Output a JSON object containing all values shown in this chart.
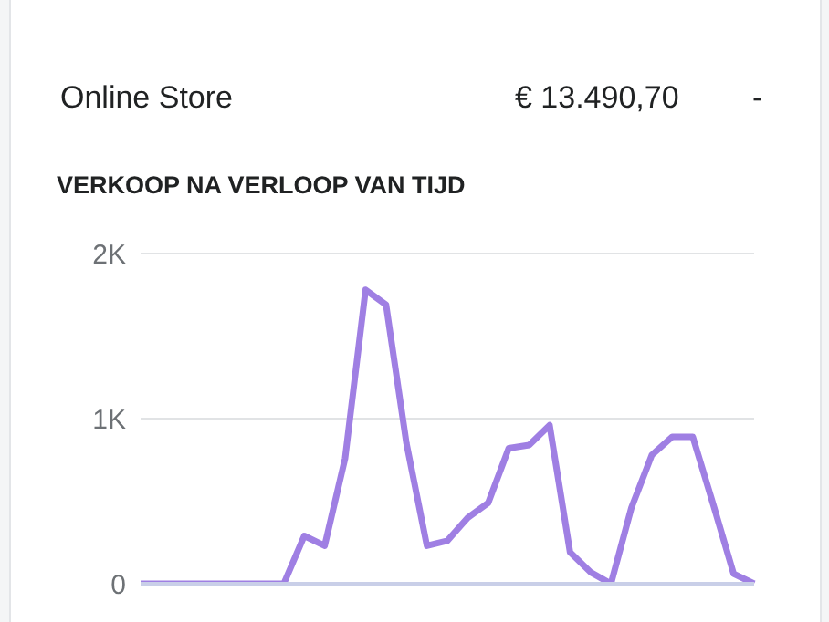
{
  "chart_data": {
    "type": "line",
    "title": "VERKOOP NA VERLOOP VAN TIJD",
    "annotations": [
      "Online Store",
      "€ 13.490,70",
      "-"
    ],
    "categories": [
      null,
      null,
      null,
      null,
      null,
      null,
      null,
      null,
      null,
      null,
      null,
      null,
      null,
      null,
      null,
      null,
      null,
      null,
      null,
      null,
      null,
      null,
      null,
      null,
      null,
      null,
      null,
      null,
      null,
      null,
      null
    ],
    "series": [
      {
        "color": "#9f7fe3",
        "values": [
          0,
          0,
          0,
          0,
          0,
          0,
          0,
          0,
          290,
          230,
          760,
          1780,
          1690,
          850,
          230,
          260,
          400,
          490,
          820,
          840,
          960,
          190,
          70,
          0,
          460,
          780,
          890,
          890,
          480,
          60,
          0
        ]
      }
    ],
    "ylim": [
      0,
      2000
    ],
    "yticks": [
      0,
      {
        "value": 1000,
        "label": "1K"
      },
      {
        "value": 2000,
        "label": "2K"
      }
    ],
    "grid": "y",
    "marker": "none",
    "line_style": "solid",
    "legend": false
  }
}
